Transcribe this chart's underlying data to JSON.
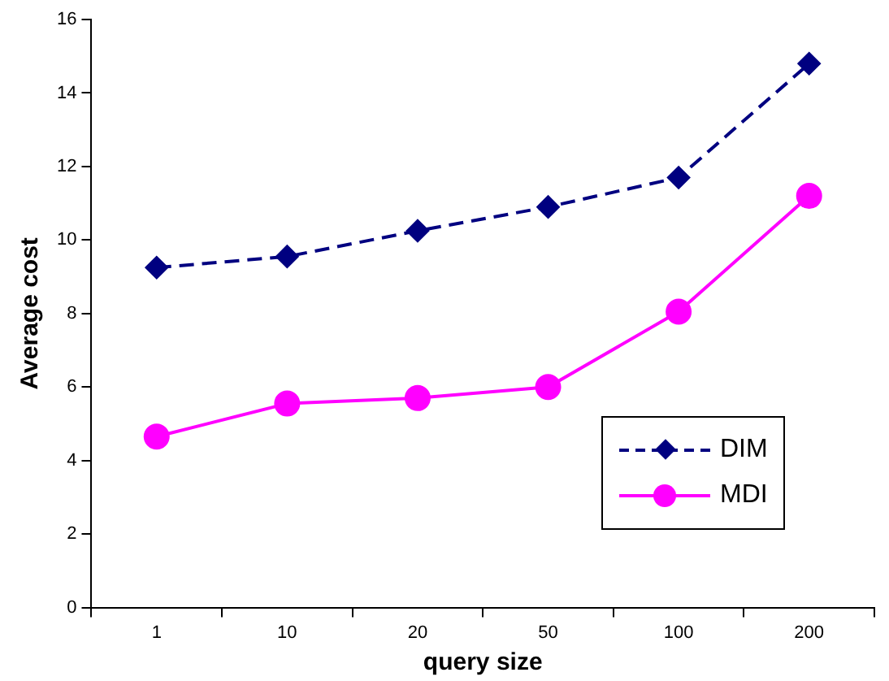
{
  "chart_data": {
    "type": "line",
    "xlabel": "query size",
    "ylabel": "Average cost",
    "categories": [
      "1",
      "10",
      "20",
      "50",
      "100",
      "200"
    ],
    "series": [
      {
        "name": "DIM",
        "color": "#000080",
        "values": [
          9.25,
          9.55,
          10.25,
          10.9,
          11.7,
          14.8
        ],
        "marker": "diamond",
        "line_style": "dashed"
      },
      {
        "name": "MDI",
        "color": "#ff00ff",
        "values": [
          4.65,
          5.55,
          5.7,
          6.0,
          8.05,
          11.2
        ],
        "marker": "circle",
        "line_style": "solid"
      }
    ],
    "ylim": [
      0,
      16
    ],
    "yticks": [
      0,
      2,
      4,
      6,
      8,
      10,
      12,
      14,
      16
    ],
    "grid": false,
    "legend": "bottom right"
  }
}
